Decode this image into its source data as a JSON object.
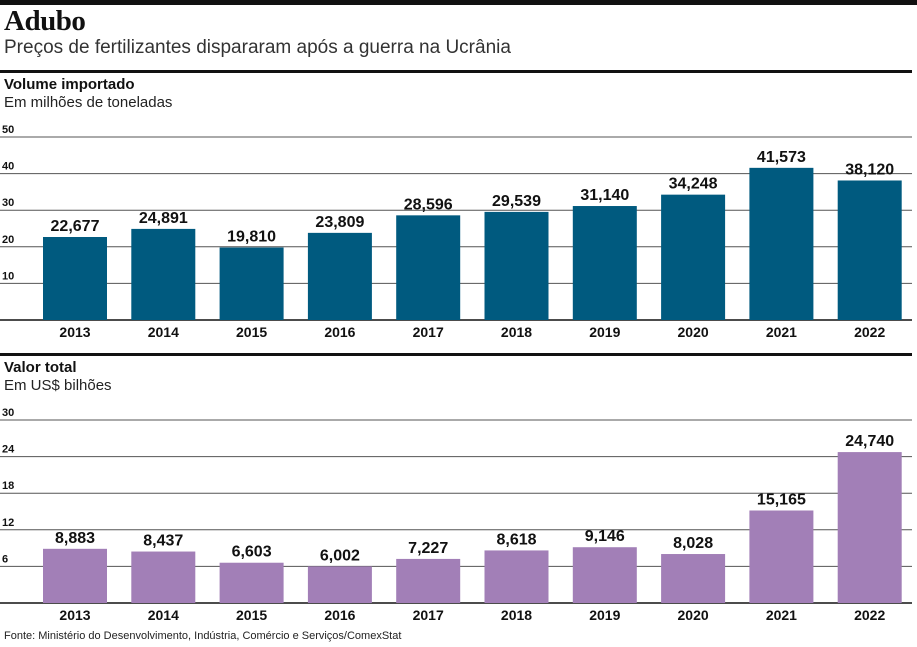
{
  "header": {
    "title": "Adubo",
    "subtitle": "Preços de fertilizantes dispararam após a guerra na Ucrânia"
  },
  "sections": [
    {
      "title": "Volume importado",
      "subtitle": "Em milhões de toneladas"
    },
    {
      "title": "Valor total",
      "subtitle": "Em US$ bilhões"
    }
  ],
  "source": "Fonte: Ministério do Desenvolvimento, Indústria, Comércio e Serviços/ComexStat",
  "colors": {
    "volume": "#005a7f",
    "valor": "#a27fb7",
    "grid": "#555555"
  },
  "chart_data": [
    {
      "type": "bar",
      "categories": [
        "2013",
        "2014",
        "2015",
        "2016",
        "2017",
        "2018",
        "2019",
        "2020",
        "2021",
        "2022"
      ],
      "values": [
        22.677,
        24.891,
        19.81,
        23.809,
        28.596,
        29.539,
        31.14,
        34.248,
        41.573,
        38.12
      ],
      "labels": [
        "22,677",
        "24,891",
        "19,810",
        "23,809",
        "28,596",
        "29,539",
        "31,140",
        "34,248",
        "41,573",
        "38,120"
      ],
      "yticks": [
        "10",
        "20",
        "30",
        "40",
        "50"
      ],
      "ylim": [
        0,
        50
      ]
    },
    {
      "type": "bar",
      "categories": [
        "2013",
        "2014",
        "2015",
        "2016",
        "2017",
        "2018",
        "2019",
        "2020",
        "2021",
        "2022"
      ],
      "values": [
        8.883,
        8.437,
        6.603,
        6.002,
        7.227,
        8.618,
        9.146,
        8.028,
        15.165,
        24.74
      ],
      "labels": [
        "8,883",
        "8,437",
        "6,603",
        "6,002",
        "7,227",
        "8,618",
        "9,146",
        "8,028",
        "15,165",
        "24,740"
      ],
      "yticks": [
        "6",
        "12",
        "18",
        "24",
        "30"
      ],
      "ylim": [
        0,
        30
      ]
    }
  ]
}
